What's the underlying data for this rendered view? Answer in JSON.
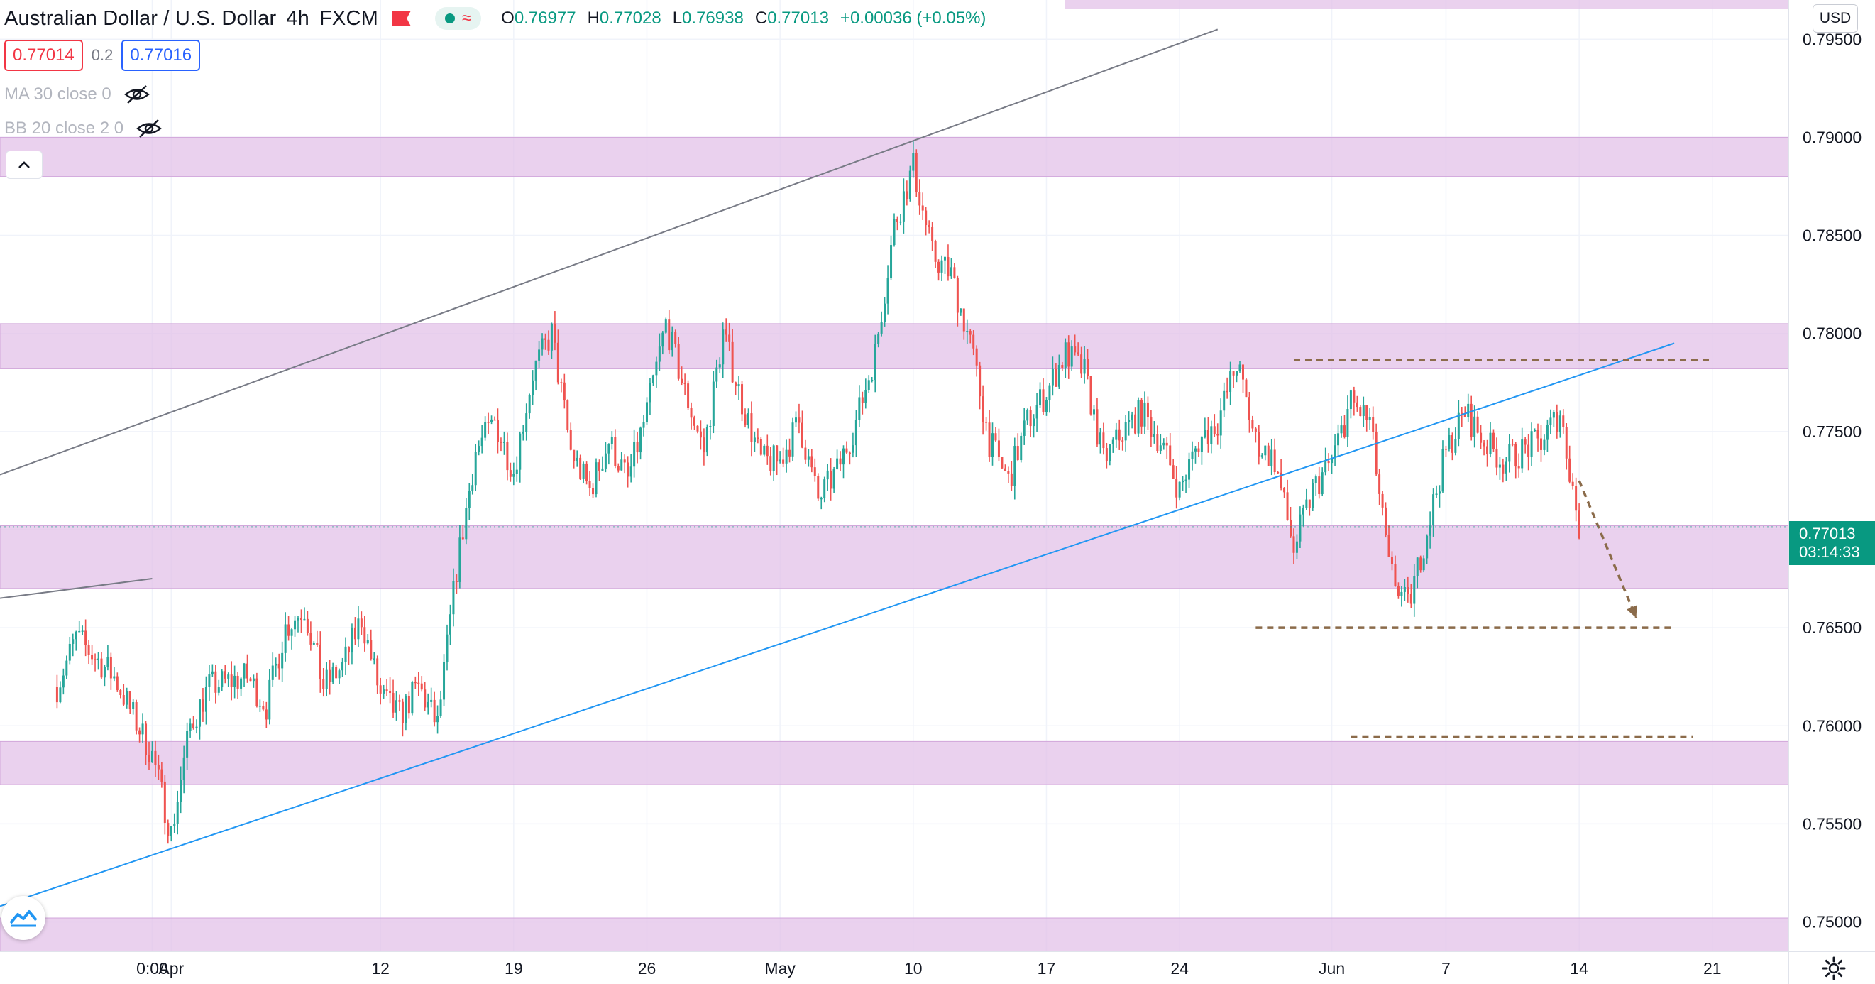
{
  "header": {
    "title": "Australian Dollar / U.S. Dollar",
    "interval": "4h",
    "exchange": "FXCM",
    "ohlc": [
      {
        "key": "O",
        "value": "0.76977"
      },
      {
        "key": "H",
        "value": "0.77028"
      },
      {
        "key": "L",
        "value": "0.76938"
      },
      {
        "key": "C",
        "value": "0.77013"
      }
    ],
    "change": "+0.00036 (+0.05%)",
    "bid": "0.77014",
    "spread": "0.2",
    "ask": "0.77016"
  },
  "indicators": [
    {
      "label": "MA 30 close 0"
    },
    {
      "label": "BB 20 close 2 0"
    }
  ],
  "price_scale": {
    "currency": "USD",
    "current_price": "0.77013",
    "countdown": "03:14:33"
  },
  "colors": {
    "up": "#26a69a",
    "down": "#ef5350",
    "zone": "#e1bee7",
    "trendline_blue": "#2196f3",
    "trendline_gray": "#787b86",
    "dashed": "#8b6b4a",
    "badge": "#089981"
  },
  "chart_data": {
    "type": "candlestick",
    "title": "Australian Dollar / U.S. Dollar",
    "interval": "4h",
    "ylim": [
      0.7485,
      0.797
    ],
    "yticks": [
      "0.75000",
      "0.75500",
      "0.76000",
      "0.76500",
      "0.77000",
      "0.77500",
      "0.78000",
      "0.78500",
      "0.79000",
      "0.79500"
    ],
    "xlim": [
      "2021-03-23",
      "2021-06-25"
    ],
    "xticks": [
      {
        "label": "0:00",
        "date": "2021-03-31"
      },
      {
        "label": "Apr",
        "date": "2021-04-01"
      },
      {
        "label": "12",
        "date": "2021-04-12"
      },
      {
        "label": "19",
        "date": "2021-04-19"
      },
      {
        "label": "26",
        "date": "2021-04-26"
      },
      {
        "label": "May",
        "date": "2021-05-03"
      },
      {
        "label": "10",
        "date": "2021-05-10"
      },
      {
        "label": "17",
        "date": "2021-05-17"
      },
      {
        "label": "24",
        "date": "2021-05-24"
      },
      {
        "label": "Jun",
        "date": "2021-06-01"
      },
      {
        "label": "7",
        "date": "2021-06-07"
      },
      {
        "label": "14",
        "date": "2021-06-14"
      },
      {
        "label": "21",
        "date": "2021-06-21"
      }
    ],
    "close_path": [
      [
        "2021-03-26",
        0.762
      ],
      [
        "2021-03-27",
        0.7645
      ],
      [
        "2021-03-29",
        0.7625
      ],
      [
        "2021-03-30",
        0.7605
      ],
      [
        "2021-03-31",
        0.7585
      ],
      [
        "2021-04-01",
        0.7545
      ],
      [
        "2021-04-02",
        0.76
      ],
      [
        "2021-04-03",
        0.762
      ],
      [
        "2021-04-05",
        0.7625
      ],
      [
        "2021-04-06",
        0.761
      ],
      [
        "2021-04-07",
        0.765
      ],
      [
        "2021-04-08",
        0.766
      ],
      [
        "2021-04-09",
        0.762
      ],
      [
        "2021-04-10",
        0.763
      ],
      [
        "2021-04-11",
        0.7655
      ],
      [
        "2021-04-12",
        0.7615
      ],
      [
        "2021-04-13",
        0.7605
      ],
      [
        "2021-04-14",
        0.762
      ],
      [
        "2021-04-15",
        0.76
      ],
      [
        "2021-04-16",
        0.768
      ],
      [
        "2021-04-17",
        0.774
      ],
      [
        "2021-04-18",
        0.7755
      ],
      [
        "2021-04-19",
        0.773
      ],
      [
        "2021-04-20",
        0.778
      ],
      [
        "2021-04-21",
        0.78
      ],
      [
        "2021-04-22",
        0.774
      ],
      [
        "2021-04-23",
        0.772
      ],
      [
        "2021-04-24",
        0.7745
      ],
      [
        "2021-04-25",
        0.7725
      ],
      [
        "2021-04-26",
        0.776
      ],
      [
        "2021-04-27",
        0.7805
      ],
      [
        "2021-04-28",
        0.777
      ],
      [
        "2021-04-29",
        0.774
      ],
      [
        "2021-04-30",
        0.78
      ],
      [
        "2021-05-01",
        0.7765
      ],
      [
        "2021-05-02",
        0.7735
      ],
      [
        "2021-05-03",
        0.7735
      ],
      [
        "2021-05-04",
        0.7755
      ],
      [
        "2021-05-05",
        0.7715
      ],
      [
        "2021-05-06",
        0.773
      ],
      [
        "2021-05-07",
        0.7755
      ],
      [
        "2021-05-08",
        0.779
      ],
      [
        "2021-05-09",
        0.7855
      ],
      [
        "2021-05-10",
        0.7885
      ],
      [
        "2021-05-11",
        0.784
      ],
      [
        "2021-05-12",
        0.783
      ],
      [
        "2021-05-13",
        0.7795
      ],
      [
        "2021-05-14",
        0.7745
      ],
      [
        "2021-05-15",
        0.7725
      ],
      [
        "2021-05-16",
        0.7755
      ],
      [
        "2021-05-17",
        0.777
      ],
      [
        "2021-05-18",
        0.779
      ],
      [
        "2021-05-19",
        0.778
      ],
      [
        "2021-05-20",
        0.7735
      ],
      [
        "2021-05-21",
        0.775
      ],
      [
        "2021-05-22",
        0.776
      ],
      [
        "2021-05-23",
        0.7745
      ],
      [
        "2021-05-24",
        0.772
      ],
      [
        "2021-05-25",
        0.7745
      ],
      [
        "2021-05-26",
        0.7755
      ],
      [
        "2021-05-27",
        0.7785
      ],
      [
        "2021-05-28",
        0.7745
      ],
      [
        "2021-05-29",
        0.7735
      ],
      [
        "2021-05-30",
        0.769
      ],
      [
        "2021-05-31",
        0.772
      ],
      [
        "2021-06-01",
        0.7735
      ],
      [
        "2021-06-02",
        0.7765
      ],
      [
        "2021-06-03",
        0.7755
      ],
      [
        "2021-06-04",
        0.768
      ],
      [
        "2021-06-05",
        0.766
      ],
      [
        "2021-06-06",
        0.77
      ],
      [
        "2021-06-07",
        0.774
      ],
      [
        "2021-06-08",
        0.776
      ],
      [
        "2021-06-09",
        0.7745
      ],
      [
        "2021-06-10",
        0.7735
      ],
      [
        "2021-06-11",
        0.774
      ],
      [
        "2021-06-12",
        0.7745
      ],
      [
        "2021-06-13",
        0.776
      ],
      [
        "2021-06-14",
        0.7701
      ]
    ],
    "zones": [
      {
        "from": 0.788,
        "to": 0.79
      },
      {
        "from": 0.7782,
        "to": 0.7805
      },
      {
        "from": 0.767,
        "to": 0.7702
      },
      {
        "from": 0.757,
        "to": 0.7592
      },
      {
        "from": 0.7485,
        "to": 0.7502
      }
    ],
    "trendlines": [
      {
        "color": "gray",
        "from": [
          "2021-03-23",
          0.7728
        ],
        "to": [
          "2021-05-26",
          0.7955
        ]
      },
      {
        "color": "blue",
        "from": [
          "2021-03-23",
          0.7508
        ],
        "to": [
          "2021-06-19",
          0.7795
        ]
      },
      {
        "color": "gray",
        "from": [
          "2021-03-23",
          0.7665
        ],
        "to": [
          "2021-03-31",
          0.7675
        ]
      }
    ],
    "dashed_levels": [
      {
        "price": 0.77865,
        "from": "2021-05-30",
        "to": "2021-06-21"
      },
      {
        "price": 0.765,
        "from": "2021-05-28",
        "to": "2021-06-19"
      },
      {
        "price": 0.75945,
        "from": "2021-06-02",
        "to": "2021-06-20"
      }
    ],
    "arrow": {
      "from": [
        "2021-06-14",
        0.7725
      ],
      "to": [
        "2021-06-17",
        0.7655
      ]
    },
    "current_price": 0.77013
  }
}
